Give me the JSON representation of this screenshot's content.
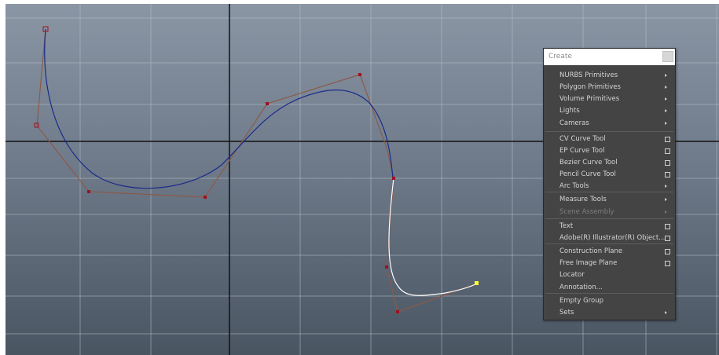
{
  "create_menu": {
    "title": "Create",
    "items": [
      {
        "label": "NURBS Primitives",
        "submenu": true
      },
      {
        "label": "Polygon Primitives",
        "submenu": true
      },
      {
        "label": "Volume Primitives",
        "submenu": true
      },
      {
        "label": "Lights",
        "submenu": true
      },
      {
        "label": "Cameras",
        "submenu": true
      },
      {
        "label": "CV Curve Tool",
        "option_box": true
      },
      {
        "label": "EP Curve Tool",
        "option_box": true
      },
      {
        "label": "Bezier Curve Tool",
        "option_box": true
      },
      {
        "label": "Pencil Curve Tool",
        "option_box": true
      },
      {
        "label": "Arc Tools",
        "submenu": true
      },
      {
        "label": "Measure Tools",
        "submenu": true
      },
      {
        "label": "Scene Assembly",
        "submenu": true,
        "disabled": true
      },
      {
        "label": "Text",
        "option_box": true
      },
      {
        "label": "Adobe(R) Illustrator(R) Object...",
        "option_box": true
      },
      {
        "label": "Construction Plane",
        "option_box": true
      },
      {
        "label": "Free Image Plane",
        "option_box": true
      },
      {
        "label": "Locator"
      },
      {
        "label": "Annotation..."
      },
      {
        "label": "Empty Group"
      },
      {
        "label": "Sets",
        "submenu": true
      }
    ]
  },
  "viewport": {
    "background_top": "#8a96a4",
    "background_bottom": "#4a5562",
    "grid_color": "#b8c0c9",
    "axis_color": "#111111",
    "curve_color": "#1a2a8c",
    "hull_color": "#8a5a4a",
    "cv_color": "#a01020",
    "active_curve_color": "#ffffff",
    "active_point_color": "#ffff33"
  }
}
